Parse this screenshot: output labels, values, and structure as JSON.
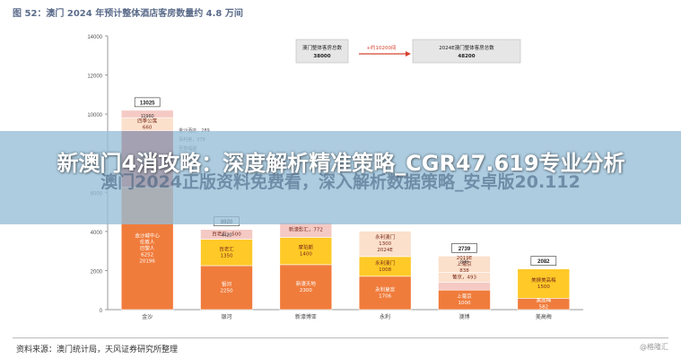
{
  "figure_title": "图 52：澳门 2024 年预计整体酒店客房数量约 4.8 万间",
  "overlay": {
    "headline": "新澳门4消攻略：深度解析精准策略_CGR47.619专业分析",
    "subline": "澳门2024正版资料免费看，深入解析数据策略_安卓版20.112"
  },
  "source": "资料来源：澳门统计局，天风证券研究所整理",
  "watermark": "@格隆汇",
  "colors": {
    "dark_red": "#d7432f",
    "orange": "#f07c3c",
    "yellow": "#ffc928",
    "peach": "#fbe0cc",
    "pink": "#f5c9c4",
    "grey_box": "#e6e6e6",
    "axis": "#999999"
  },
  "chart_data": {
    "type": "bar",
    "ylim": [
      0,
      14000
    ],
    "yticks": [
      0,
      2000,
      4000,
      6000,
      8000,
      10000,
      12000,
      14000
    ],
    "grid": false,
    "categories": [
      "金沙",
      "银河",
      "新濠博亚",
      "永利",
      "澳博",
      "美高梅"
    ],
    "bars": [
      {
        "category": "金沙",
        "top_label": "13025",
        "top_note": "11960",
        "segments": [
          {
            "label": "金沙城中心",
            "value": 6252,
            "color": "orange",
            "lines": [
              "金沙城中心",
              "伦敦人",
              "巴黎人",
              "6252",
              "20196"
            ]
          },
          {
            "label": "威尼斯人",
            "value": 2905,
            "color": "dark_red",
            "lines": [
              "威尼斯人",
              "2905"
            ]
          },
          {
            "label": "四季公寓",
            "value": 660,
            "color": "peach",
            "lines": [
              "四季公寓",
              "660"
            ]
          },
          {
            "label": "百利宫",
            "value": 379,
            "color": "pink",
            "lines": []
          }
        ],
        "callouts": [
          "金沙酒店，289",
          "百利宫，379",
          "至尊福朋",
          "四季公寓"
        ]
      },
      {
        "category": "银河",
        "top_label": "8920",
        "top_note": "4420",
        "segments": [
          {
            "label": "银河",
            "value": 2250,
            "color": "orange",
            "lines": [
              "银河",
              "2250"
            ]
          },
          {
            "label": "百老汇",
            "value": 1350,
            "color": "yellow",
            "lines": [
              "百老汇",
              "1350"
            ]
          },
          {
            "label": "百老汇酒店",
            "value": 500,
            "color": "pink",
            "lines": [
              "百老汇，500"
            ]
          }
        ]
      },
      {
        "category": "新濠博亚",
        "top_label": "",
        "segments": [
          {
            "label": "新濠天地",
            "value": 2300,
            "color": "orange",
            "lines": [
              "新濠天地",
              "2300"
            ]
          },
          {
            "label": "摩珀斯",
            "value": 1400,
            "color": "yellow",
            "lines": [
              "摩珀斯",
              "1400"
            ]
          },
          {
            "label": "新濠影汇",
            "value": 772,
            "color": "pink",
            "lines": [
              "新濠影汇，772"
            ]
          }
        ]
      },
      {
        "category": "永利",
        "top_label": "",
        "segments": [
          {
            "label": "永利皇宫",
            "value": 1706,
            "color": "orange",
            "lines": [
              "永利皇宫",
              "1706"
            ]
          },
          {
            "label": "永利澳门",
            "value": 1008,
            "color": "yellow",
            "lines": [
              "永利澳门",
              "1008"
            ]
          },
          {
            "label": "永利澳门2024E",
            "value": 1300,
            "color": "peach",
            "lines": [
              "永利澳门",
              "1300",
              "2024E"
            ]
          }
        ]
      },
      {
        "category": "澳博",
        "top_label": "2739",
        "top_note": "838",
        "segments": [
          {
            "label": "上葡京",
            "value": 1000,
            "color": "orange",
            "lines": [
              "上葡京",
              "1000"
            ]
          },
          {
            "label": "新葡京",
            "value": 408,
            "color": "pink",
            "lines": [
              "新葡京，408"
            ]
          },
          {
            "label": "葡京",
            "value": 493,
            "color": "peach",
            "lines": [
              "葡京，493"
            ]
          },
          {
            "label": "2019E",
            "value": 838,
            "color": "peach",
            "lines": [
              "2019E",
              "上葡京",
              "838"
            ]
          }
        ]
      },
      {
        "category": "美高梅",
        "top_label": "2082",
        "segments": [
          {
            "label": "美高梅路氹",
            "value": 582,
            "color": "orange",
            "lines": [
              "美高梅",
              "582"
            ]
          },
          {
            "label": "美狮美高梅",
            "value": 1500,
            "color": "yellow",
            "lines": [
              "美狮美高梅",
              "1500"
            ]
          }
        ]
      }
    ],
    "summary_boxes": [
      {
        "lines": [
          "澳门整体客房总数",
          "38000"
        ]
      },
      {
        "lines": [
          "+约10200间"
        ]
      },
      {
        "lines": [
          "2024E澳门整体客房总数",
          "48200"
        ]
      }
    ]
  }
}
